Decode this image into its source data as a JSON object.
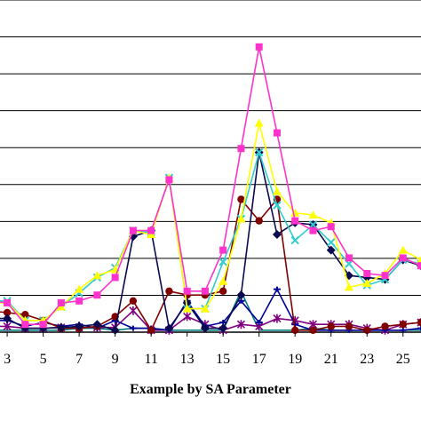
{
  "chart_data": {
    "type": "line",
    "xlabel": "Example by SA Parameter",
    "ylabel": "",
    "title": "",
    "x_range": [
      2.6,
      26.0
    ],
    "y_range": [
      0,
      8.5
    ],
    "grid": true,
    "x_tick_labels": [
      "3",
      "5",
      "7",
      "9",
      "11",
      "13",
      "15",
      "17",
      "19",
      "21",
      "23",
      "25"
    ],
    "x": [
      2,
      3,
      4,
      5,
      6,
      7,
      8,
      9,
      10,
      11,
      12,
      13,
      14,
      15,
      16,
      17,
      18,
      19,
      20,
      21,
      22,
      23,
      24,
      25,
      26
    ],
    "series": [
      {
        "color": "#ff33cc",
        "marker": "square",
        "values": [
          0.8,
          0.75,
          0.2,
          0.2,
          0.75,
          0.8,
          0.95,
          1.4,
          2.6,
          2.6,
          3.9,
          1.05,
          1.05,
          2.1,
          4.7,
          7.3,
          5.1,
          2.85,
          2.6,
          2.7,
          1.9,
          1.5,
          1.45,
          1.9,
          1.7
        ]
      },
      {
        "color": "#ffff00",
        "marker": "triangle",
        "values": [
          0.75,
          0.75,
          0.3,
          0.3,
          0.65,
          1.1,
          1.45,
          1.6,
          2.6,
          2.5,
          3.95,
          0.6,
          0.6,
          1.3,
          2.9,
          5.35,
          3.6,
          3.05,
          3.0,
          2.8,
          1.15,
          1.25,
          1.5,
          2.1,
          1.85
        ]
      },
      {
        "color": "#33cccc",
        "marker": "x",
        "values": [
          0.8,
          0.8,
          0.3,
          0.3,
          0.65,
          1.0,
          1.4,
          1.65,
          2.6,
          2.55,
          3.95,
          0.6,
          0.6,
          1.8,
          2.9,
          4.6,
          3.25,
          2.35,
          2.75,
          2.3,
          1.75,
          1.2,
          1.35,
          1.85,
          1.75
        ]
      },
      {
        "color": "#0a0a50",
        "marker": "diamond",
        "values": [
          0.35,
          0.35,
          0.1,
          0.1,
          0.12,
          0.15,
          0.2,
          0.05,
          2.45,
          2.6,
          0.1,
          0.75,
          0.1,
          0.1,
          0.95,
          4.6,
          2.5,
          2.8,
          2.75,
          2.1,
          1.45,
          1.4,
          1.35,
          1.85,
          1.7
        ]
      },
      {
        "color": "#800000",
        "marker": "circle",
        "values": [
          0.55,
          0.5,
          0.45,
          0.3,
          0.1,
          0.1,
          0.15,
          0.4,
          0.8,
          0.05,
          1.05,
          0.95,
          0.95,
          1.05,
          3.4,
          2.85,
          3.4,
          0.05,
          0.05,
          0.15,
          0.15,
          0.05,
          0.15,
          0.2,
          0.25
        ]
      },
      {
        "color": "#000099",
        "marker": "dash",
        "values": [
          0.3,
          0.3,
          0.15,
          0.25,
          0.15,
          0.2,
          0.1,
          0.3,
          0.1,
          0.1,
          0.05,
          0.8,
          0.15,
          0.25,
          0.8,
          0.25,
          1.1,
          0.2,
          0.05,
          0.05,
          0.05,
          0.05,
          0.05,
          0.05,
          0.1
        ]
      },
      {
        "color": "#800080",
        "marker": "star",
        "values": [
          0.15,
          0.15,
          0.1,
          0.1,
          0.12,
          0.12,
          0.12,
          0.12,
          0.55,
          0.05,
          0.05,
          0.4,
          0.2,
          0.05,
          0.2,
          0.15,
          0.35,
          0.3,
          0.2,
          0.2,
          0.2,
          0.1,
          0.05,
          0.2,
          0.25
        ]
      },
      {
        "color": "#008080",
        "marker": "none",
        "values": [
          0.05,
          0.05,
          0.05,
          0.05,
          0.05,
          0.1,
          0.1,
          0.05,
          0.1,
          0.1,
          0.05,
          0.05,
          0.05,
          0.05,
          1.05,
          0.05,
          0.05,
          0.05,
          0.1,
          0.05,
          0.05,
          0.05,
          0.05,
          0.05,
          0.05
        ]
      }
    ]
  }
}
